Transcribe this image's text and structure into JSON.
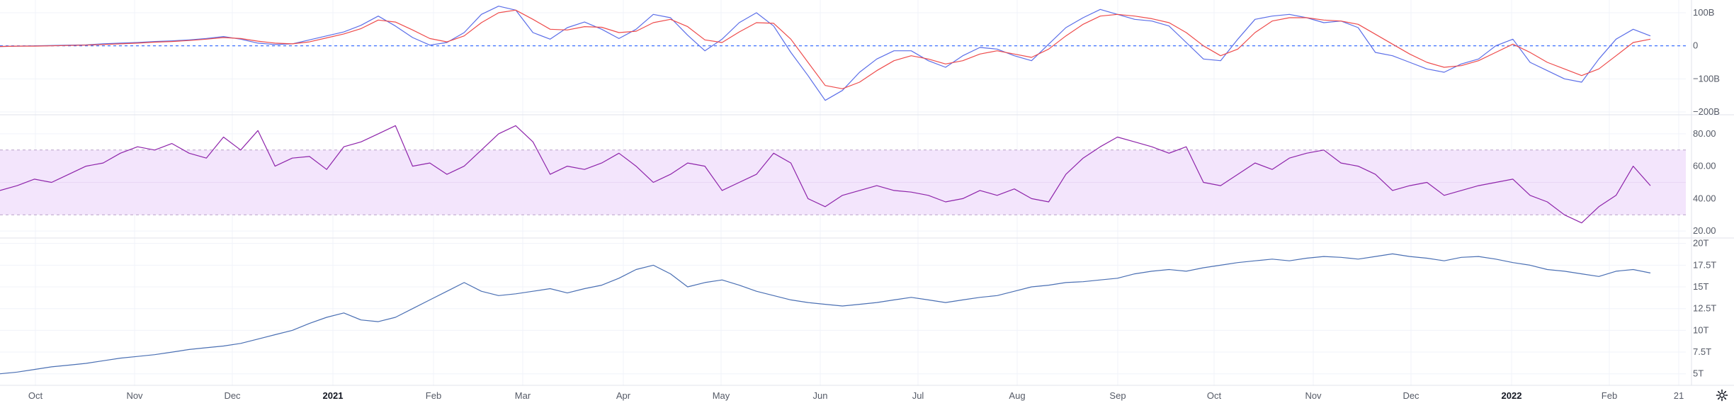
{
  "chart_data": [
    {
      "type": "line",
      "panel": "macd",
      "series": [
        {
          "name": "MACD",
          "color": "#5b6ee8",
          "values": [
            -2,
            -1,
            0,
            1,
            2,
            3,
            6,
            8,
            10,
            13,
            15,
            18,
            22,
            28,
            20,
            8,
            4,
            6,
            18,
            30,
            42,
            62,
            90,
            60,
            25,
            2,
            10,
            40,
            95,
            120,
            108,
            40,
            20,
            55,
            72,
            50,
            22,
            50,
            95,
            85,
            32,
            -15,
            20,
            70,
            100,
            60,
            -20,
            -90,
            -165,
            -135,
            -80,
            -40,
            -15,
            -15,
            -45,
            -65,
            -30,
            -5,
            -10,
            -30,
            -45,
            5,
            55,
            85,
            110,
            95,
            80,
            75,
            60,
            10,
            -40,
            -45,
            20,
            80,
            90,
            95,
            85,
            70,
            75,
            55,
            -20,
            -30,
            -50,
            -70,
            -80,
            -55,
            -40,
            0,
            20,
            -50,
            -75,
            -100,
            -110,
            -40,
            20,
            50,
            30
          ]
        },
        {
          "name": "Signal",
          "color": "#ee4b4b",
          "values": [
            -2,
            -1,
            -1,
            0,
            1,
            2,
            4,
            6,
            8,
            11,
            13,
            16,
            20,
            25,
            22,
            14,
            8,
            6,
            12,
            24,
            36,
            52,
            78,
            72,
            48,
            22,
            12,
            30,
            70,
            100,
            108,
            80,
            50,
            48,
            58,
            56,
            40,
            44,
            70,
            80,
            58,
            18,
            10,
            42,
            70,
            68,
            20,
            -50,
            -120,
            -130,
            -110,
            -75,
            -45,
            -30,
            -40,
            -55,
            -45,
            -25,
            -15,
            -25,
            -35,
            -10,
            30,
            65,
            90,
            95,
            90,
            82,
            70,
            40,
            0,
            -30,
            -10,
            40,
            75,
            85,
            85,
            78,
            75,
            65,
            35,
            5,
            -25,
            -50,
            -65,
            -60,
            -45,
            -20,
            5,
            -20,
            -50,
            -70,
            -90,
            -70,
            -30,
            10,
            20
          ]
        }
      ],
      "y_ticks": [
        "100B",
        "0",
        "−100B",
        "−200B"
      ],
      "y_tick_values": [
        100,
        0,
        -100,
        -200
      ],
      "ylim": [
        -200,
        130
      ]
    },
    {
      "type": "line",
      "panel": "rsi",
      "series": [
        {
          "name": "RSI",
          "color": "#8e24aa",
          "values": [
            45,
            48,
            52,
            50,
            55,
            60,
            62,
            68,
            72,
            70,
            74,
            68,
            65,
            78,
            70,
            82,
            60,
            65,
            66,
            58,
            72,
            75,
            80,
            85,
            60,
            62,
            55,
            60,
            70,
            80,
            85,
            75,
            55,
            60,
            58,
            62,
            68,
            60,
            50,
            55,
            62,
            60,
            45,
            50,
            55,
            68,
            62,
            40,
            35,
            42,
            45,
            48,
            45,
            44,
            42,
            38,
            40,
            45,
            42,
            46,
            40,
            38,
            55,
            65,
            72,
            78,
            75,
            72,
            68,
            72,
            50,
            48,
            55,
            62,
            58,
            65,
            68,
            70,
            62,
            60,
            55,
            45,
            48,
            50,
            42,
            45,
            48,
            50,
            52,
            42,
            38,
            30,
            25,
            35,
            42,
            60,
            48
          ]
        }
      ],
      "y_ticks": [
        "80.00",
        "60.00",
        "40.00",
        "20.00"
      ],
      "y_tick_values": [
        80,
        60,
        40,
        20
      ],
      "band": [
        30,
        70
      ],
      "ylim": [
        17,
        90
      ]
    },
    {
      "type": "line",
      "panel": "price",
      "series": [
        {
          "name": "Value",
          "color": "#4a6fb3",
          "values": [
            5,
            5.2,
            5.5,
            5.8,
            6,
            6.2,
            6.5,
            6.8,
            7,
            7.2,
            7.5,
            7.8,
            8,
            8.2,
            8.5,
            9,
            9.5,
            10,
            10.8,
            11.5,
            12,
            11.2,
            11,
            11.5,
            12.5,
            13.5,
            14.5,
            15.5,
            14.5,
            14,
            14.2,
            14.5,
            14.8,
            14.3,
            14.8,
            15.2,
            16,
            17,
            17.5,
            16.5,
            15,
            15.5,
            15.8,
            15.2,
            14.5,
            14,
            13.5,
            13.2,
            13,
            12.8,
            13,
            13.2,
            13.5,
            13.8,
            13.5,
            13.2,
            13.5,
            13.8,
            14,
            14.5,
            15,
            15.2,
            15.5,
            15.6,
            15.8,
            16,
            16.5,
            16.8,
            17,
            16.8,
            17.2,
            17.5,
            17.8,
            18,
            18.2,
            18,
            18.3,
            18.5,
            18.4,
            18.2,
            18.5,
            18.8,
            18.5,
            18.3,
            18,
            18.4,
            18.5,
            18.2,
            17.8,
            17.5,
            17,
            16.8,
            16.5,
            16.2,
            16.8,
            17,
            16.6
          ]
        }
      ],
      "y_ticks": [
        "20T",
        "17.5T",
        "15T",
        "12.5T",
        "10T",
        "7.5T",
        "5T"
      ],
      "y_tick_values": [
        20,
        17.5,
        15,
        12.5,
        10,
        7.5,
        5
      ],
      "ylim": [
        4,
        20.3
      ]
    }
  ],
  "time_axis": {
    "labels": [
      "Oct",
      "Nov",
      "Dec",
      "2021",
      "Feb",
      "Mar",
      "Apr",
      "May",
      "Jun",
      "Jul",
      "Aug",
      "Sep",
      "Oct",
      "Nov",
      "Dec",
      "2022",
      "Feb",
      "21"
    ],
    "bold": [
      false,
      false,
      false,
      true,
      false,
      false,
      false,
      false,
      false,
      false,
      false,
      false,
      false,
      false,
      false,
      true,
      false,
      false
    ]
  },
  "colors": {
    "grid": "#f0f3fa",
    "separator": "#e0e3eb",
    "zero_line": "#2962ff",
    "rsi_band_fill": "#f3e5fc",
    "rsi_band_line": "#b8a0c8"
  }
}
